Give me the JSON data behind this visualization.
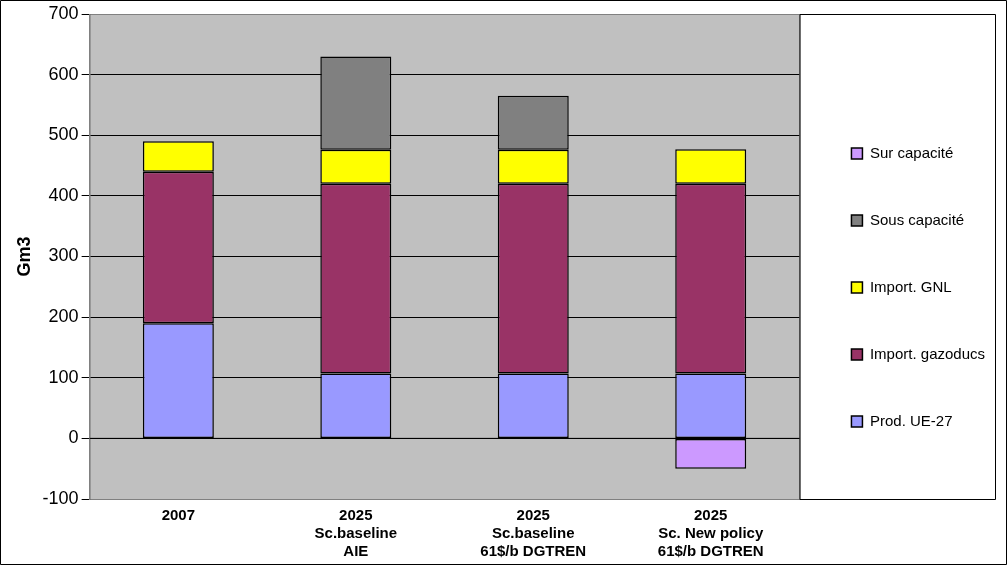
{
  "chart_data": {
    "type": "bar",
    "stacked": true,
    "ylabel": "Gm3",
    "categories": [
      "2007",
      "2025\nSc.baseline\nAIE",
      "2025\nSc.baseline\n61$/b DGTREN",
      "2025\nSc. New policy\n61$/b DGTREN"
    ],
    "series": [
      {
        "name": "Prod. UE-27",
        "color": "#9999ff",
        "values": [
          190,
          107,
          107,
          107
        ]
      },
      {
        "name": "Import. gazoducs",
        "color": "#993366",
        "values": [
          250,
          313,
          313,
          313
        ]
      },
      {
        "name": "Import. GNL",
        "color": "#ffff00",
        "values": [
          50,
          56,
          56,
          57
        ]
      },
      {
        "name": "Sous capacité",
        "color": "#808080",
        "values": [
          null,
          154,
          89,
          null
        ]
      },
      {
        "name": "Sur capacité",
        "color": "#cc99ff",
        "values": [
          null,
          null,
          null,
          -50
        ]
      }
    ],
    "ylim": [
      -100,
      700
    ],
    "yticks": [
      -100,
      0,
      100,
      200,
      300,
      400,
      500,
      600,
      700
    ],
    "grid": "y",
    "legend": "right"
  }
}
